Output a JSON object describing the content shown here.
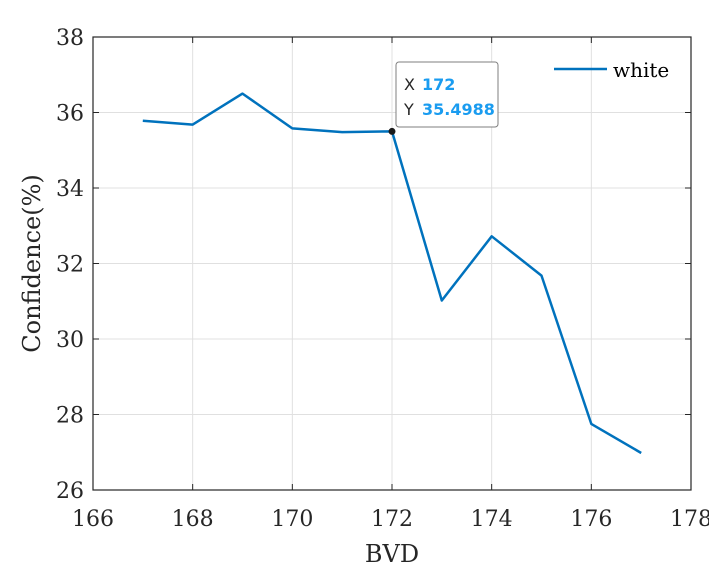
{
  "chart_data": {
    "type": "line",
    "title": "",
    "xlabel": "BVD",
    "ylabel": "Confidence(%)",
    "xlim": [
      166,
      178
    ],
    "ylim": [
      26,
      38
    ],
    "xticks": [
      "166",
      "168",
      "170",
      "172",
      "174",
      "176",
      "178"
    ],
    "yticks": [
      "26",
      "28",
      "30",
      "32",
      "34",
      "36",
      "38"
    ],
    "grid": true,
    "legend_position": "top-right",
    "series": [
      {
        "name": "white",
        "color": "#0072BD",
        "x": [
          167,
          168,
          169,
          170,
          171,
          172,
          173,
          174,
          175,
          176,
          177
        ],
        "y": [
          35.78,
          35.68,
          36.5,
          35.58,
          35.48,
          35.4988,
          31.02,
          32.72,
          31.68,
          27.75,
          26.98
        ]
      }
    ],
    "datatip": {
      "x_label": "X",
      "x_value": "172",
      "y_label": "Y",
      "y_value": "35.4988",
      "value_color": "#1A9CF0"
    }
  }
}
